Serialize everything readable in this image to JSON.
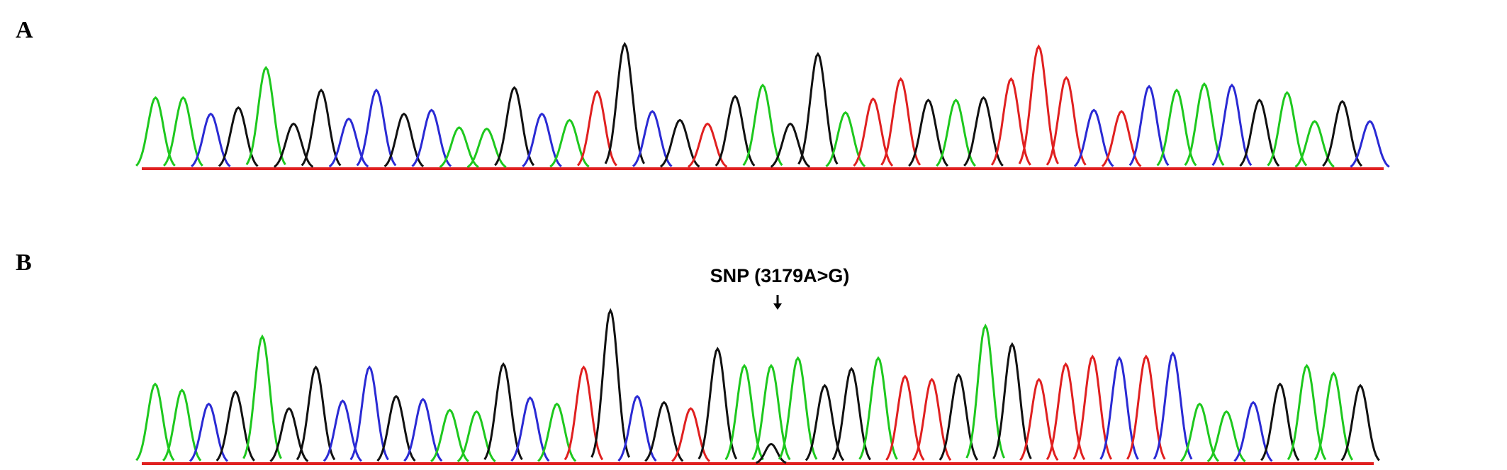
{
  "figure": {
    "panels": [
      {
        "label": "A",
        "type": "sequencing-chromatogram"
      },
      {
        "label": "B",
        "type": "sequencing-chromatogram"
      }
    ],
    "annotation": {
      "text": "SNP (3179A>G)",
      "arrow": "down"
    },
    "colors": {
      "A_base": "#1ec81e",
      "C_base": "#2a2ad4",
      "G_base": "#111111",
      "T_base": "#e02020"
    }
  },
  "chart_data": [
    {
      "type": "line",
      "panel": "A",
      "peaks": [
        "A",
        "A",
        "C",
        "G",
        "A",
        "G",
        "G",
        "C",
        "C",
        "G",
        "C",
        "A",
        "A",
        "G",
        "C",
        "A",
        "T",
        "G",
        "C",
        "G",
        "T",
        "G",
        "A",
        "G",
        "G",
        "A",
        "T",
        "T",
        "G",
        "A",
        "G",
        "T",
        "T",
        "T",
        "C",
        "T",
        "C",
        "A",
        "A",
        "C",
        "G",
        "A",
        "A",
        "G",
        "C"
      ],
      "relative_heights": [
        0.57,
        0.57,
        0.44,
        0.49,
        0.81,
        0.36,
        0.63,
        0.4,
        0.63,
        0.44,
        0.47,
        0.33,
        0.32,
        0.65,
        0.44,
        0.39,
        0.62,
        1.0,
        0.46,
        0.39,
        0.36,
        0.58,
        0.67,
        0.36,
        0.92,
        0.45,
        0.56,
        0.72,
        0.55,
        0.55,
        0.57,
        0.72,
        0.98,
        0.73,
        0.47,
        0.46,
        0.66,
        0.63,
        0.68,
        0.67,
        0.55,
        0.61,
        0.38,
        0.54,
        0.38
      ]
    },
    {
      "type": "line",
      "panel": "B",
      "peaks": [
        "A",
        "A",
        "C",
        "G",
        "A",
        "G",
        "G",
        "C",
        "C",
        "G",
        "C",
        "A",
        "A",
        "G",
        "C",
        "A",
        "T",
        "G",
        "C",
        "G",
        "T",
        "G",
        "A",
        "A/G",
        "A",
        "G",
        "G",
        "A",
        "T",
        "T",
        "G",
        "A",
        "G",
        "T",
        "T",
        "T",
        "C",
        "T",
        "C",
        "A",
        "A",
        "C",
        "G",
        "A",
        "A",
        "G"
      ],
      "relative_heights": [
        0.52,
        0.48,
        0.39,
        0.47,
        0.83,
        0.36,
        0.63,
        0.41,
        0.63,
        0.44,
        0.42,
        0.35,
        0.34,
        0.65,
        0.43,
        0.39,
        0.63,
        1.0,
        0.44,
        0.4,
        0.36,
        0.75,
        0.64,
        0.64,
        0.69,
        0.51,
        0.62,
        0.69,
        0.57,
        0.55,
        0.58,
        0.9,
        0.78,
        0.55,
        0.65,
        0.7,
        0.69,
        0.7,
        0.72,
        0.39,
        0.34,
        0.4,
        0.52,
        0.64,
        0.59,
        0.51
      ]
    }
  ]
}
